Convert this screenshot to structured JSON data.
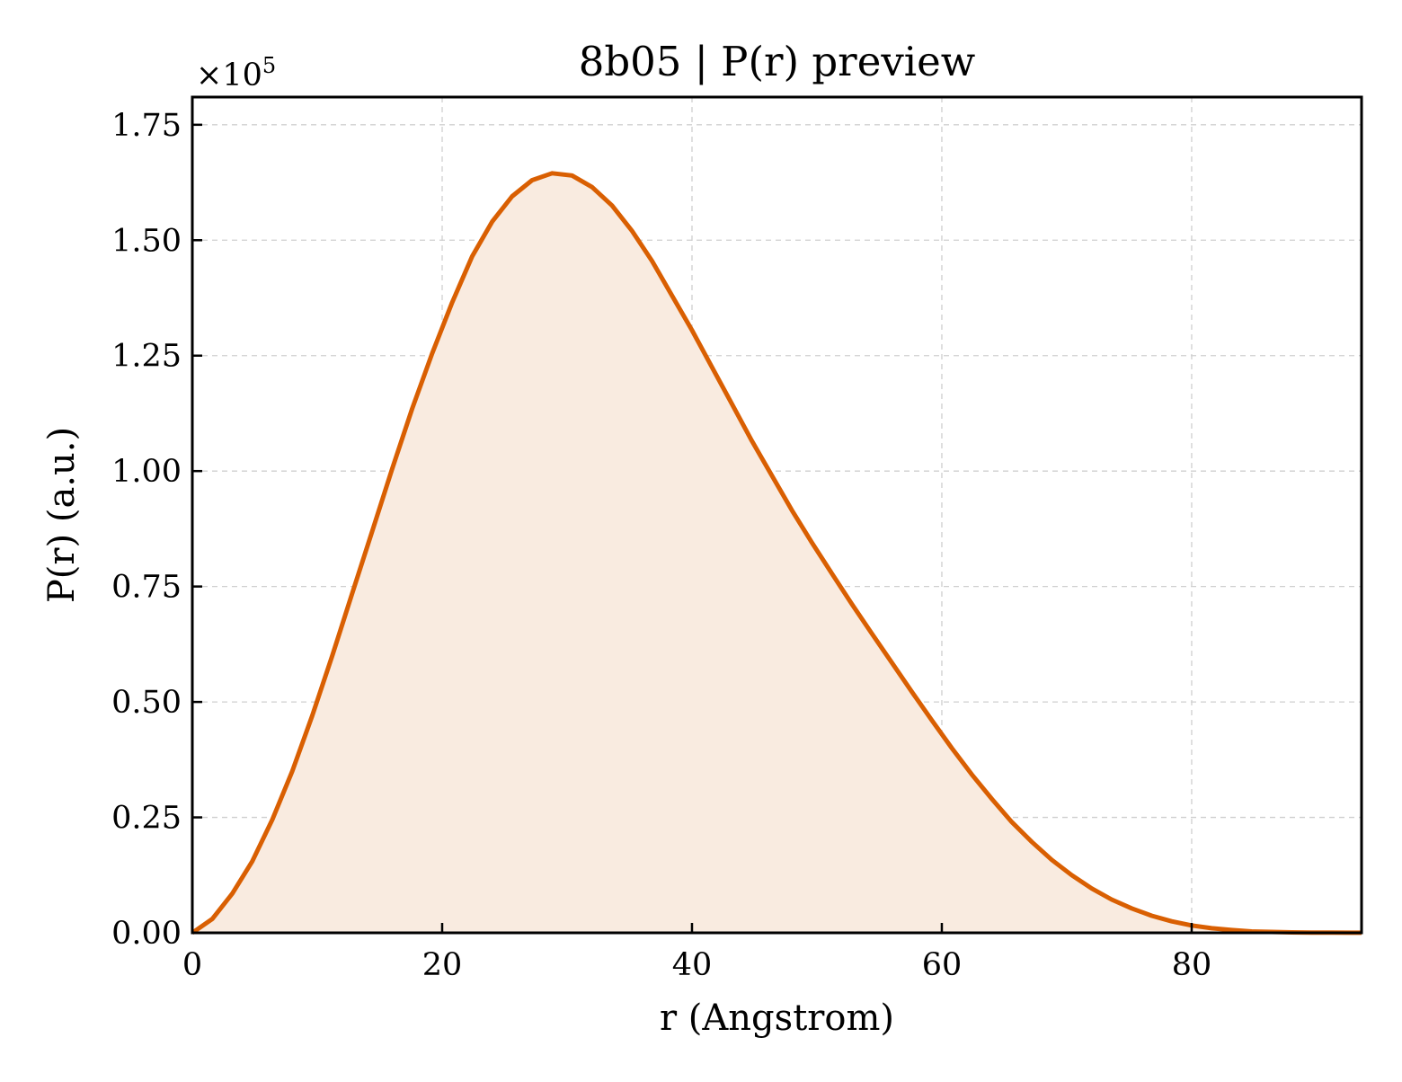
{
  "chart_data": {
    "type": "area",
    "title": "8b05 | P(r) preview",
    "xlabel": "r (Angstrom)",
    "ylabel": "P(r) (a.u.)",
    "y_multiplier_label": "×10",
    "y_multiplier_exponent": "5",
    "xlim": [
      0,
      93.6
    ],
    "ylim": [
      0,
      1.81
    ],
    "y_scale_factor": 100000,
    "grid": true,
    "legend": "none",
    "x_ticks": [
      0,
      20,
      40,
      60,
      80
    ],
    "x_tick_labels": [
      "0",
      "20",
      "40",
      "60",
      "80"
    ],
    "y_ticks": [
      0,
      0.25,
      0.5,
      0.75,
      1.0,
      1.25,
      1.5,
      1.75
    ],
    "y_tick_labels": [
      "0.00",
      "0.25",
      "0.50",
      "0.75",
      "1.00",
      "1.25",
      "1.50",
      "1.75"
    ],
    "colors": {
      "line": "#d95f02",
      "fill": "#f9ebe0"
    },
    "series": [
      {
        "x": [
          0,
          1.6,
          3.2,
          4.8,
          6.4,
          8.0,
          9.6,
          11.2,
          12.8,
          14.4,
          16.0,
          17.6,
          19.2,
          20.8,
          22.4,
          24.0,
          25.6,
          27.2,
          28.8,
          30.4,
          32.0,
          33.6,
          35.2,
          36.8,
          38.4,
          40.0,
          41.6,
          43.2,
          44.8,
          46.4,
          48.0,
          49.6,
          51.2,
          52.8,
          54.4,
          56.0,
          57.6,
          59.2,
          60.8,
          62.4,
          64.0,
          65.6,
          67.2,
          68.8,
          70.4,
          72.0,
          73.6,
          75.2,
          76.8,
          78.4,
          80.0,
          81.6,
          83.2,
          84.8,
          86.4,
          88.0,
          89.6,
          91.2,
          92.8,
          93.6
        ],
        "y": [
          0,
          0.03,
          0.085,
          0.155,
          0.245,
          0.35,
          0.47,
          0.6,
          0.735,
          0.87,
          1.005,
          1.135,
          1.255,
          1.365,
          1.465,
          1.54,
          1.595,
          1.63,
          1.645,
          1.64,
          1.615,
          1.575,
          1.52,
          1.455,
          1.38,
          1.305,
          1.225,
          1.145,
          1.065,
          0.99,
          0.915,
          0.845,
          0.778,
          0.712,
          0.648,
          0.585,
          0.522,
          0.46,
          0.4,
          0.343,
          0.29,
          0.24,
          0.197,
          0.158,
          0.125,
          0.096,
          0.072,
          0.053,
          0.037,
          0.025,
          0.016,
          0.01,
          0.006,
          0.003,
          0.002,
          0.001,
          0.0005,
          0.0003,
          0.0002,
          0.0001
        ]
      }
    ]
  }
}
